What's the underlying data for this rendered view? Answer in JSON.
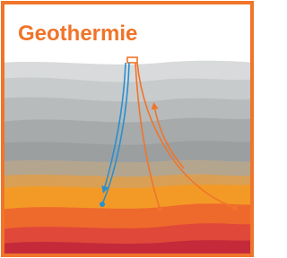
{
  "title": "Geothermie"
}
